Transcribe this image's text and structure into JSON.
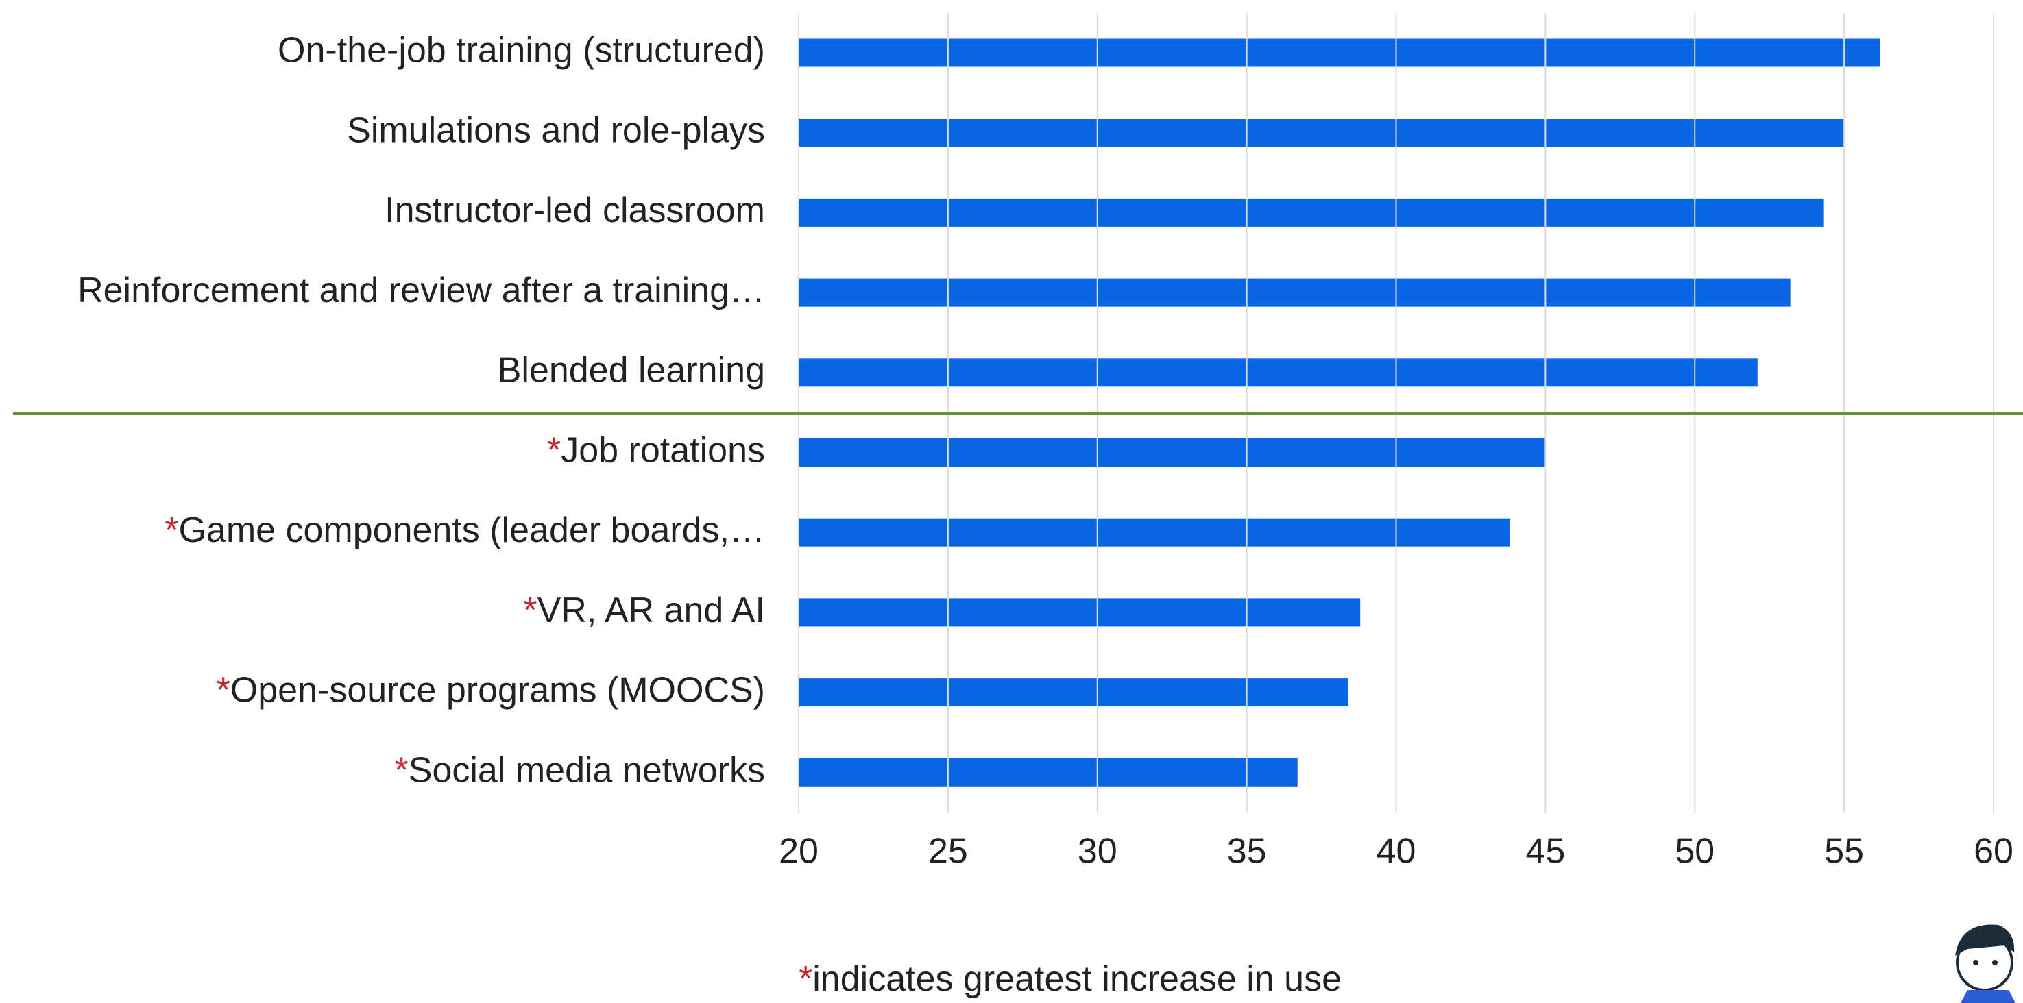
{
  "chart_data": {
    "type": "bar",
    "orientation": "horizontal",
    "categories": [
      "On-the-job training (structured)",
      "Simulations and role-plays",
      "Instructor-led classroom",
      "Reinforcement and review after a training…",
      "Blended learning",
      "*Job rotations",
      "*Game components (leader boards,…",
      "*VR, AR and AI",
      "*Open-source programs (MOOCS)",
      "*Social media networks"
    ],
    "values": [
      56.2,
      55.0,
      54.3,
      53.2,
      52.1,
      45.0,
      43.8,
      38.8,
      38.4,
      36.7
    ],
    "color": "#0866e4",
    "xlim": [
      20,
      60
    ],
    "xticks": [
      20,
      25,
      30,
      35,
      40,
      45,
      50,
      55,
      60
    ],
    "grid": true,
    "footnote": "*indicates greatest increase in use"
  }
}
